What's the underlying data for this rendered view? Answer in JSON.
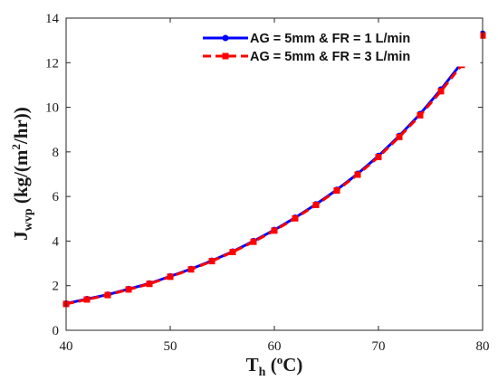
{
  "chart_data": {
    "type": "line",
    "xlabel": {
      "main": "T",
      "sub": "h",
      "unit_open": " (",
      "unit_sup": "o",
      "unit_close": "C)"
    },
    "ylabel": {
      "main": "J",
      "sub": "wvp",
      "unit_open": " (kg/(m",
      "unit_sup": "2",
      "unit_close": "/hr))"
    },
    "xlim": [
      40,
      80
    ],
    "ylim": [
      0,
      14
    ],
    "xticks": [
      40,
      50,
      60,
      70,
      80
    ],
    "yticks": [
      0,
      2,
      4,
      6,
      8,
      10,
      12,
      14
    ],
    "grid": false,
    "legend_position": "top-right",
    "x": [
      40,
      42,
      44,
      46,
      48,
      50,
      52,
      54,
      56,
      58,
      60,
      62,
      64,
      66,
      68,
      70,
      72,
      74,
      76,
      78,
      80
    ],
    "series": [
      {
        "name": "AG = 5mm & FR = 1 L/min",
        "color": "#0000ff",
        "marker": "circle",
        "line_style": "solid",
        "values": [
          1.2,
          1.4,
          1.6,
          1.85,
          2.1,
          2.42,
          2.75,
          3.12,
          3.53,
          4.0,
          4.5,
          5.05,
          5.65,
          6.3,
          7.02,
          7.82,
          8.72,
          9.7,
          10.8,
          12.0,
          13.3
        ]
      },
      {
        "name": "AG = 5mm & FR = 3 L/min",
        "color": "#ff0000",
        "marker": "square",
        "line_style": "dashed",
        "values": [
          1.18,
          1.38,
          1.58,
          1.83,
          2.08,
          2.4,
          2.73,
          3.1,
          3.51,
          3.97,
          4.47,
          5.02,
          5.62,
          6.27,
          6.98,
          7.77,
          8.67,
          9.64,
          10.72,
          11.9,
          13.22
        ]
      }
    ]
  }
}
